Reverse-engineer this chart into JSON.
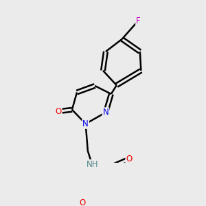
{
  "bg_color": "#ebebeb",
  "atom_colors": {
    "C": "#000000",
    "N": "#0000ee",
    "O": "#ee0000",
    "F": "#cc00cc",
    "H": "#558888"
  },
  "bond_color": "#000000",
  "bond_width": 1.8,
  "dbo": 0.012
}
